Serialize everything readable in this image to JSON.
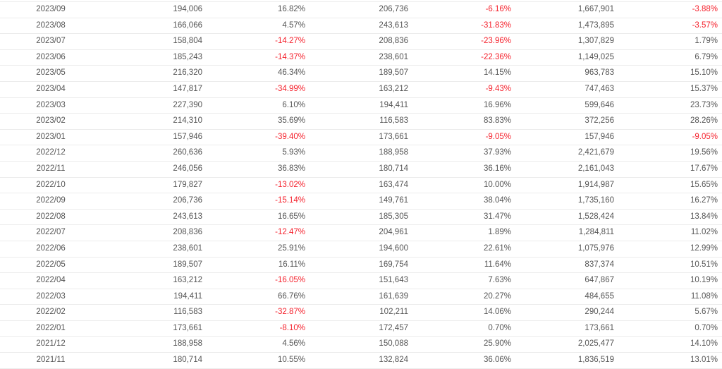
{
  "colors": {
    "negative": "#f5222d",
    "text": "#555555"
  },
  "rows": [
    [
      "2023/09",
      "194,006",
      "16.82%",
      "206,736",
      "-6.16%",
      "1,667,901",
      "-3.88%"
    ],
    [
      "2023/08",
      "166,066",
      "4.57%",
      "243,613",
      "-31.83%",
      "1,473,895",
      "-3.57%"
    ],
    [
      "2023/07",
      "158,804",
      "-14.27%",
      "208,836",
      "-23.96%",
      "1,307,829",
      "1.79%"
    ],
    [
      "2023/06",
      "185,243",
      "-14.37%",
      "238,601",
      "-22.36%",
      "1,149,025",
      "6.79%"
    ],
    [
      "2023/05",
      "216,320",
      "46.34%",
      "189,507",
      "14.15%",
      "963,783",
      "15.10%"
    ],
    [
      "2023/04",
      "147,817",
      "-34.99%",
      "163,212",
      "-9.43%",
      "747,463",
      "15.37%"
    ],
    [
      "2023/03",
      "227,390",
      "6.10%",
      "194,411",
      "16.96%",
      "599,646",
      "23.73%"
    ],
    [
      "2023/02",
      "214,310",
      "35.69%",
      "116,583",
      "83.83%",
      "372,256",
      "28.26%"
    ],
    [
      "2023/01",
      "157,946",
      "-39.40%",
      "173,661",
      "-9.05%",
      "157,946",
      "-9.05%"
    ],
    [
      "2022/12",
      "260,636",
      "5.93%",
      "188,958",
      "37.93%",
      "2,421,679",
      "19.56%"
    ],
    [
      "2022/11",
      "246,056",
      "36.83%",
      "180,714",
      "36.16%",
      "2,161,043",
      "17.67%"
    ],
    [
      "2022/10",
      "179,827",
      "-13.02%",
      "163,474",
      "10.00%",
      "1,914,987",
      "15.65%"
    ],
    [
      "2022/09",
      "206,736",
      "-15.14%",
      "149,761",
      "38.04%",
      "1,735,160",
      "16.27%"
    ],
    [
      "2022/08",
      "243,613",
      "16.65%",
      "185,305",
      "31.47%",
      "1,528,424",
      "13.84%"
    ],
    [
      "2022/07",
      "208,836",
      "-12.47%",
      "204,961",
      "1.89%",
      "1,284,811",
      "11.02%"
    ],
    [
      "2022/06",
      "238,601",
      "25.91%",
      "194,600",
      "22.61%",
      "1,075,976",
      "12.99%"
    ],
    [
      "2022/05",
      "189,507",
      "16.11%",
      "169,754",
      "11.64%",
      "837,374",
      "10.51%"
    ],
    [
      "2022/04",
      "163,212",
      "-16.05%",
      "151,643",
      "7.63%",
      "647,867",
      "10.19%"
    ],
    [
      "2022/03",
      "194,411",
      "66.76%",
      "161,639",
      "20.27%",
      "484,655",
      "11.08%"
    ],
    [
      "2022/02",
      "116,583",
      "-32.87%",
      "102,211",
      "14.06%",
      "290,244",
      "5.67%"
    ],
    [
      "2022/01",
      "173,661",
      "-8.10%",
      "172,457",
      "0.70%",
      "173,661",
      "0.70%"
    ],
    [
      "2021/12",
      "188,958",
      "4.56%",
      "150,088",
      "25.90%",
      "2,025,477",
      "14.10%"
    ],
    [
      "2021/11",
      "180,714",
      "10.55%",
      "132,824",
      "36.06%",
      "1,836,519",
      "13.01%"
    ]
  ]
}
